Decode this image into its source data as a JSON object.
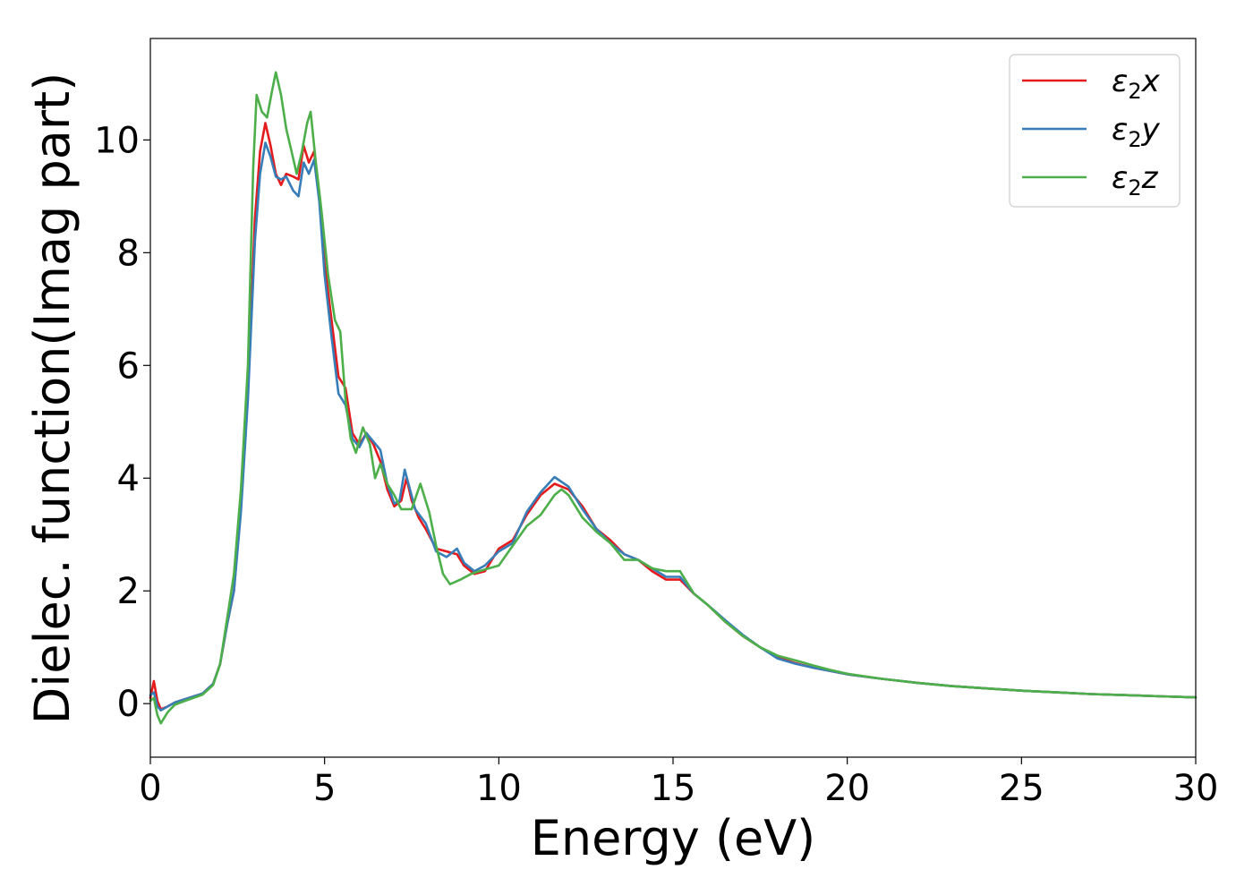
{
  "chart_data": {
    "type": "line",
    "xlabel": "Energy (eV)",
    "ylabel": "Dielec. function(Imag part)",
    "xlim": [
      0,
      30
    ],
    "ylim": [
      -0.95,
      11.8
    ],
    "xticks": [
      0,
      5,
      10,
      15,
      20,
      25,
      30
    ],
    "yticks": [
      0,
      2,
      4,
      6,
      8,
      10
    ],
    "grid": false,
    "legend_position": "top-right",
    "series": [
      {
        "name": "ε₂x",
        "legend_base": "ε",
        "legend_sub": "2",
        "legend_tail": "x",
        "color": "#e41a1c",
        "points": [
          [
            0,
            0.1
          ],
          [
            0.1,
            0.4
          ],
          [
            0.2,
            0.05
          ],
          [
            0.3,
            -0.1
          ],
          [
            0.5,
            -0.05
          ],
          [
            0.7,
            0.02
          ],
          [
            1.0,
            0.08
          ],
          [
            1.5,
            0.18
          ],
          [
            1.8,
            0.35
          ],
          [
            2.0,
            0.7
          ],
          [
            2.2,
            1.4
          ],
          [
            2.4,
            2.0
          ],
          [
            2.6,
            3.5
          ],
          [
            2.8,
            5.5
          ],
          [
            3.0,
            8.6
          ],
          [
            3.15,
            9.8
          ],
          [
            3.3,
            10.3
          ],
          [
            3.45,
            9.9
          ],
          [
            3.6,
            9.4
          ],
          [
            3.75,
            9.2
          ],
          [
            3.9,
            9.4
          ],
          [
            4.1,
            9.35
          ],
          [
            4.25,
            9.3
          ],
          [
            4.4,
            9.9
          ],
          [
            4.55,
            9.6
          ],
          [
            4.7,
            9.8
          ],
          [
            4.85,
            9.0
          ],
          [
            5.0,
            7.8
          ],
          [
            5.2,
            6.8
          ],
          [
            5.4,
            5.8
          ],
          [
            5.6,
            5.6
          ],
          [
            5.8,
            4.8
          ],
          [
            6.0,
            4.6
          ],
          [
            6.2,
            4.8
          ],
          [
            6.4,
            4.6
          ],
          [
            6.6,
            4.3
          ],
          [
            6.8,
            3.8
          ],
          [
            7.0,
            3.5
          ],
          [
            7.2,
            3.6
          ],
          [
            7.35,
            4.0
          ],
          [
            7.5,
            3.6
          ],
          [
            7.7,
            3.3
          ],
          [
            7.9,
            3.1
          ],
          [
            8.2,
            2.75
          ],
          [
            8.5,
            2.7
          ],
          [
            8.8,
            2.65
          ],
          [
            9.0,
            2.45
          ],
          [
            9.3,
            2.3
          ],
          [
            9.6,
            2.35
          ],
          [
            10.0,
            2.75
          ],
          [
            10.4,
            2.9
          ],
          [
            10.8,
            3.35
          ],
          [
            11.2,
            3.7
          ],
          [
            11.6,
            3.9
          ],
          [
            12.0,
            3.8
          ],
          [
            12.4,
            3.5
          ],
          [
            12.8,
            3.1
          ],
          [
            13.2,
            2.9
          ],
          [
            13.6,
            2.65
          ],
          [
            14.0,
            2.55
          ],
          [
            14.4,
            2.35
          ],
          [
            14.8,
            2.2
          ],
          [
            15.2,
            2.2
          ],
          [
            15.6,
            1.95
          ],
          [
            16.0,
            1.75
          ],
          [
            16.5,
            1.45
          ],
          [
            17.0,
            1.2
          ],
          [
            17.5,
            1.0
          ],
          [
            18.0,
            0.82
          ],
          [
            18.5,
            0.72
          ],
          [
            19.0,
            0.64
          ],
          [
            19.5,
            0.58
          ],
          [
            20.0,
            0.52
          ],
          [
            21.0,
            0.44
          ],
          [
            22.0,
            0.37
          ],
          [
            23.0,
            0.31
          ],
          [
            24.0,
            0.27
          ],
          [
            25.0,
            0.23
          ],
          [
            26.0,
            0.2
          ],
          [
            27.0,
            0.17
          ],
          [
            28.0,
            0.15
          ],
          [
            29.0,
            0.13
          ],
          [
            30.0,
            0.11
          ]
        ]
      },
      {
        "name": "ε₂y",
        "legend_base": "ε",
        "legend_sub": "2",
        "legend_tail": "y",
        "color": "#377eb8",
        "points": [
          [
            0,
            0.15
          ],
          [
            0.1,
            0.2
          ],
          [
            0.2,
            -0.05
          ],
          [
            0.3,
            -0.12
          ],
          [
            0.5,
            -0.05
          ],
          [
            0.7,
            0.02
          ],
          [
            1.0,
            0.08
          ],
          [
            1.5,
            0.18
          ],
          [
            1.8,
            0.35
          ],
          [
            2.0,
            0.7
          ],
          [
            2.2,
            1.4
          ],
          [
            2.4,
            2.0
          ],
          [
            2.6,
            3.4
          ],
          [
            2.8,
            5.4
          ],
          [
            3.0,
            8.2
          ],
          [
            3.15,
            9.4
          ],
          [
            3.3,
            9.95
          ],
          [
            3.45,
            9.7
          ],
          [
            3.6,
            9.35
          ],
          [
            3.75,
            9.3
          ],
          [
            3.9,
            9.35
          ],
          [
            4.1,
            9.1
          ],
          [
            4.25,
            9.0
          ],
          [
            4.4,
            9.6
          ],
          [
            4.55,
            9.4
          ],
          [
            4.7,
            9.65
          ],
          [
            4.85,
            8.9
          ],
          [
            5.0,
            7.6
          ],
          [
            5.2,
            6.5
          ],
          [
            5.4,
            5.5
          ],
          [
            5.6,
            5.3
          ],
          [
            5.8,
            4.7
          ],
          [
            6.0,
            4.55
          ],
          [
            6.2,
            4.8
          ],
          [
            6.4,
            4.65
          ],
          [
            6.6,
            4.5
          ],
          [
            6.8,
            3.9
          ],
          [
            7.0,
            3.55
          ],
          [
            7.15,
            3.6
          ],
          [
            7.3,
            4.15
          ],
          [
            7.45,
            3.8
          ],
          [
            7.6,
            3.45
          ],
          [
            7.9,
            3.2
          ],
          [
            8.2,
            2.7
          ],
          [
            8.5,
            2.6
          ],
          [
            8.8,
            2.75
          ],
          [
            9.0,
            2.5
          ],
          [
            9.3,
            2.35
          ],
          [
            9.6,
            2.45
          ],
          [
            10.0,
            2.7
          ],
          [
            10.4,
            2.85
          ],
          [
            10.8,
            3.4
          ],
          [
            11.2,
            3.75
          ],
          [
            11.6,
            4.02
          ],
          [
            12.0,
            3.85
          ],
          [
            12.4,
            3.45
          ],
          [
            12.8,
            3.1
          ],
          [
            13.2,
            2.85
          ],
          [
            13.6,
            2.65
          ],
          [
            14.0,
            2.55
          ],
          [
            14.4,
            2.4
          ],
          [
            14.8,
            2.25
          ],
          [
            15.2,
            2.25
          ],
          [
            15.6,
            1.95
          ],
          [
            16.0,
            1.75
          ],
          [
            16.5,
            1.48
          ],
          [
            17.0,
            1.22
          ],
          [
            17.5,
            1.0
          ],
          [
            18.0,
            0.8
          ],
          [
            18.5,
            0.71
          ],
          [
            19.0,
            0.64
          ],
          [
            19.5,
            0.58
          ],
          [
            20.0,
            0.52
          ],
          [
            21.0,
            0.44
          ],
          [
            22.0,
            0.37
          ],
          [
            23.0,
            0.31
          ],
          [
            24.0,
            0.27
          ],
          [
            25.0,
            0.23
          ],
          [
            26.0,
            0.2
          ],
          [
            27.0,
            0.17
          ],
          [
            28.0,
            0.15
          ],
          [
            29.0,
            0.13
          ],
          [
            30.0,
            0.11
          ]
        ]
      },
      {
        "name": "ε₂z",
        "legend_base": "ε",
        "legend_sub": "2",
        "legend_tail": "z",
        "color": "#4daf4a",
        "points": [
          [
            0,
            0.05
          ],
          [
            0.1,
            0.1
          ],
          [
            0.2,
            -0.2
          ],
          [
            0.3,
            -0.35
          ],
          [
            0.5,
            -0.15
          ],
          [
            0.7,
            -0.02
          ],
          [
            1.0,
            0.05
          ],
          [
            1.5,
            0.16
          ],
          [
            1.8,
            0.33
          ],
          [
            2.0,
            0.7
          ],
          [
            2.2,
            1.5
          ],
          [
            2.4,
            2.3
          ],
          [
            2.6,
            3.8
          ],
          [
            2.8,
            6.0
          ],
          [
            2.95,
            9.5
          ],
          [
            3.05,
            10.8
          ],
          [
            3.2,
            10.5
          ],
          [
            3.35,
            10.4
          ],
          [
            3.5,
            10.9
          ],
          [
            3.6,
            11.2
          ],
          [
            3.75,
            10.8
          ],
          [
            3.9,
            10.2
          ],
          [
            4.05,
            9.8
          ],
          [
            4.2,
            9.4
          ],
          [
            4.35,
            9.8
          ],
          [
            4.5,
            10.3
          ],
          [
            4.6,
            10.5
          ],
          [
            4.75,
            9.6
          ],
          [
            4.9,
            8.8
          ],
          [
            5.1,
            7.6
          ],
          [
            5.3,
            6.8
          ],
          [
            5.45,
            6.6
          ],
          [
            5.6,
            5.4
          ],
          [
            5.75,
            4.7
          ],
          [
            5.9,
            4.45
          ],
          [
            6.1,
            4.9
          ],
          [
            6.3,
            4.6
          ],
          [
            6.45,
            4.0
          ],
          [
            6.6,
            4.25
          ],
          [
            6.8,
            3.9
          ],
          [
            7.0,
            3.7
          ],
          [
            7.2,
            3.45
          ],
          [
            7.5,
            3.45
          ],
          [
            7.75,
            3.9
          ],
          [
            8.0,
            3.4
          ],
          [
            8.2,
            2.8
          ],
          [
            8.4,
            2.3
          ],
          [
            8.6,
            2.12
          ],
          [
            8.9,
            2.2
          ],
          [
            9.2,
            2.3
          ],
          [
            9.6,
            2.38
          ],
          [
            10.0,
            2.45
          ],
          [
            10.4,
            2.8
          ],
          [
            10.8,
            3.15
          ],
          [
            11.2,
            3.35
          ],
          [
            11.6,
            3.7
          ],
          [
            11.8,
            3.8
          ],
          [
            12.0,
            3.7
          ],
          [
            12.4,
            3.3
          ],
          [
            12.8,
            3.05
          ],
          [
            13.2,
            2.85
          ],
          [
            13.6,
            2.55
          ],
          [
            14.0,
            2.55
          ],
          [
            14.4,
            2.4
          ],
          [
            14.8,
            2.35
          ],
          [
            15.2,
            2.35
          ],
          [
            15.6,
            1.95
          ],
          [
            16.0,
            1.75
          ],
          [
            16.5,
            1.45
          ],
          [
            17.0,
            1.2
          ],
          [
            17.5,
            1.0
          ],
          [
            18.0,
            0.85
          ],
          [
            18.5,
            0.77
          ],
          [
            19.0,
            0.68
          ],
          [
            19.5,
            0.6
          ],
          [
            20.0,
            0.53
          ],
          [
            21.0,
            0.44
          ],
          [
            22.0,
            0.37
          ],
          [
            23.0,
            0.31
          ],
          [
            24.0,
            0.27
          ],
          [
            25.0,
            0.23
          ],
          [
            26.0,
            0.2
          ],
          [
            27.0,
            0.17
          ],
          [
            28.0,
            0.15
          ],
          [
            29.0,
            0.13
          ],
          [
            30.0,
            0.11
          ]
        ]
      }
    ]
  }
}
